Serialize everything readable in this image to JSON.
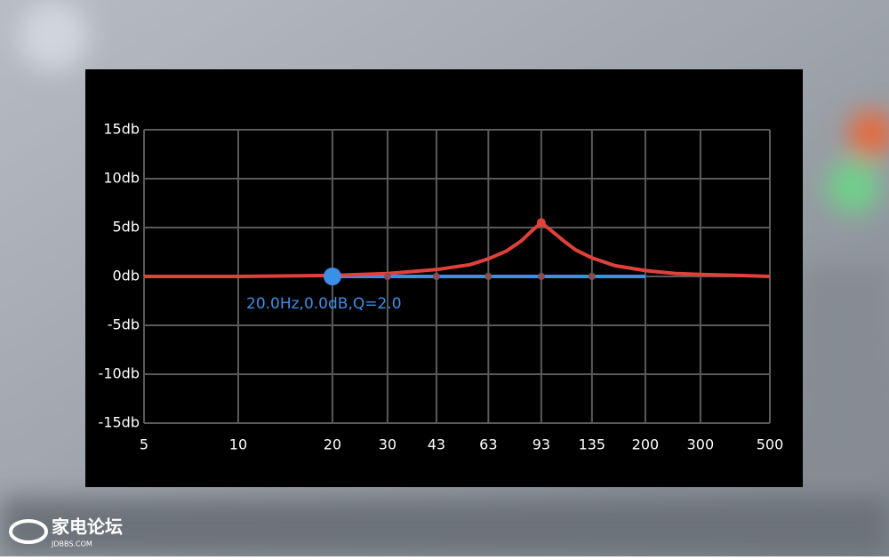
{
  "chart_data": {
    "type": "eq-curve",
    "xscale": "log",
    "xlim": [
      5,
      500
    ],
    "xticks": [
      5,
      10,
      20,
      30,
      43,
      63,
      93,
      135,
      200,
      300,
      500
    ],
    "ylim": [
      -15,
      15
    ],
    "yticks": [
      {
        "value": 15,
        "label": "15db"
      },
      {
        "value": 10,
        "label": "10db"
      },
      {
        "value": 5,
        "label": "5db"
      },
      {
        "value": 0,
        "label": "0db"
      },
      {
        "value": -5,
        "label": "-5db"
      },
      {
        "value": -10,
        "label": "-10db"
      },
      {
        "value": -15,
        "label": "-15db"
      }
    ],
    "grid": true,
    "series": [
      {
        "color": "#3d8ee6",
        "x": [
          20,
          30,
          43,
          63,
          93,
          135,
          200
        ],
        "values": [
          0,
          0,
          0,
          0,
          0,
          0,
          0
        ],
        "selected": 0
      },
      {
        "color": "#e0413a",
        "x": [
          5,
          10,
          20,
          30,
          43,
          55,
          63,
          72,
          80,
          87,
          93,
          100,
          110,
          120,
          135,
          160,
          200,
          250,
          300,
          400,
          500
        ],
        "values": [
          0,
          0,
          0.1,
          0.3,
          0.7,
          1.2,
          1.8,
          2.6,
          3.6,
          4.7,
          5.5,
          4.7,
          3.6,
          2.7,
          1.9,
          1.1,
          0.6,
          0.3,
          0.2,
          0.1,
          0
        ]
      }
    ],
    "annotation": "20.0Hz,0.0dB,Q=2.0"
  },
  "watermark": {
    "title": "家电论坛",
    "subtitle": "JDBBS.COM"
  }
}
